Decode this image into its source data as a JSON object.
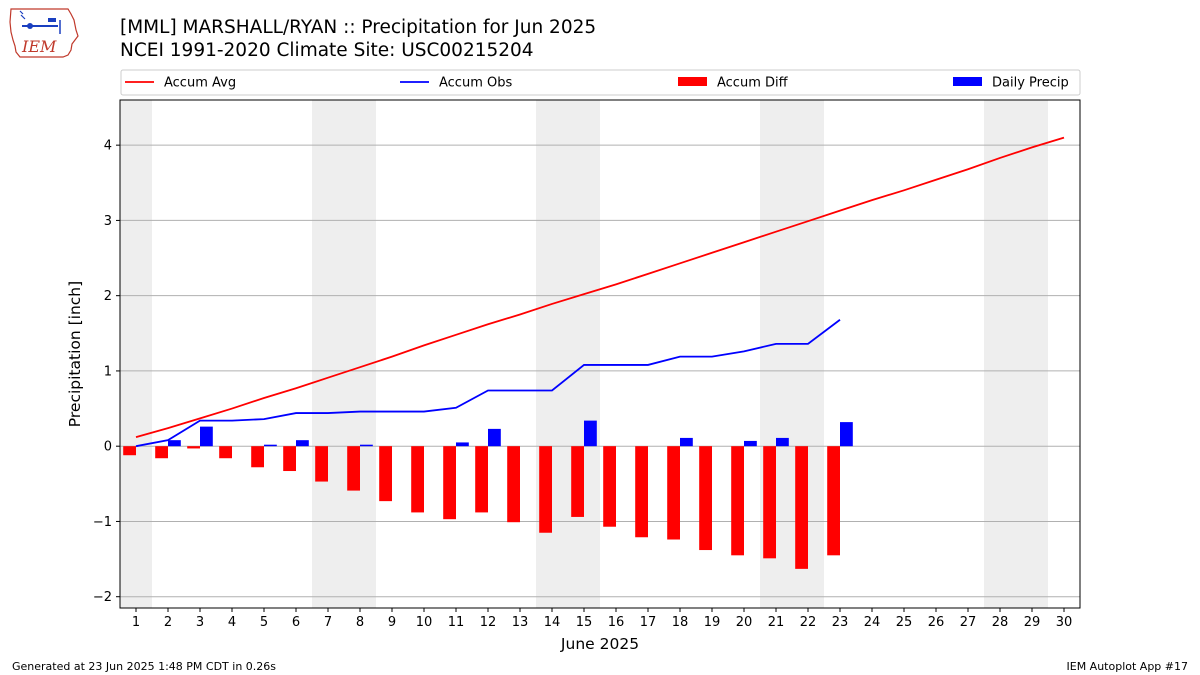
{
  "header": {
    "title_line1": "[MML] MARSHALL/RYAN :: Precipitation for Jun 2025",
    "title_line2": "NCEI 1991-2020 Climate Site: USC00215204",
    "logo_text": "IEM"
  },
  "footer": {
    "generated": "Generated at 23 Jun 2025 1:48 PM CDT in 0.26s",
    "app": "IEM Autoplot App #17"
  },
  "colors": {
    "avg": "#ff0000",
    "obs": "#0000ff",
    "diff": "#ff0000",
    "daily": "#0000ff",
    "weekend_shade": "#eeeeee",
    "grid": "#b0b0b0"
  },
  "chart_data": {
    "type": "bar",
    "xlabel": "June 2025",
    "ylabel": "Precipitation [inch]",
    "ylim": [
      -2.15,
      4.6
    ],
    "xlim": [
      0.5,
      30.5
    ],
    "yticks": [
      -2,
      -1,
      0,
      1,
      2,
      3,
      4
    ],
    "ytick_labels": [
      "−2",
      "−1",
      "0",
      "1",
      "2",
      "3",
      "4"
    ],
    "days": [
      1,
      2,
      3,
      4,
      5,
      6,
      7,
      8,
      9,
      10,
      11,
      12,
      13,
      14,
      15,
      16,
      17,
      18,
      19,
      20,
      21,
      22,
      23,
      24,
      25,
      26,
      27,
      28,
      29,
      30
    ],
    "grid": "horizontal",
    "legend_position": "top",
    "legend": [
      "Accum Avg",
      "Accum Obs",
      "Accum Diff",
      "Daily Precip"
    ],
    "shaded_weekends": [
      [
        0.5,
        1.5
      ],
      [
        6.5,
        8.5
      ],
      [
        13.5,
        15.5
      ],
      [
        20.5,
        22.5
      ],
      [
        27.5,
        29.5
      ]
    ],
    "series": [
      {
        "name": "Accum Avg",
        "kind": "line",
        "values": [
          0.12,
          0.24,
          0.37,
          0.5,
          0.64,
          0.77,
          0.91,
          1.05,
          1.19,
          1.34,
          1.48,
          1.62,
          1.75,
          1.89,
          2.02,
          2.15,
          2.29,
          2.43,
          2.57,
          2.71,
          2.85,
          2.99,
          3.13,
          3.27,
          3.4,
          3.54,
          3.68,
          3.83,
          3.97,
          4.1
        ]
      },
      {
        "name": "Accum Obs",
        "kind": "line",
        "values": [
          0.0,
          0.08,
          0.34,
          0.34,
          0.36,
          0.44,
          0.44,
          0.46,
          0.46,
          0.46,
          0.51,
          0.74,
          0.74,
          0.74,
          1.08,
          1.08,
          1.08,
          1.19,
          1.19,
          1.26,
          1.36,
          1.36,
          1.68
        ]
      },
      {
        "name": "Accum Diff",
        "kind": "bar",
        "values": [
          -0.12,
          -0.16,
          -0.03,
          -0.16,
          -0.28,
          -0.33,
          -0.47,
          -0.59,
          -0.73,
          -0.88,
          -0.97,
          -0.88,
          -1.01,
          -1.15,
          -0.94,
          -1.07,
          -1.21,
          -1.24,
          -1.38,
          -1.45,
          -1.49,
          -1.63,
          -1.45
        ]
      },
      {
        "name": "Daily Precip",
        "kind": "bar",
        "values": [
          0.0,
          0.08,
          0.26,
          0.0,
          0.02,
          0.08,
          0.0,
          0.02,
          0.0,
          0.0,
          0.05,
          0.23,
          0.0,
          0.0,
          0.34,
          0.0,
          0.0,
          0.11,
          0.0,
          0.07,
          0.11,
          0.0,
          0.32
        ]
      }
    ]
  }
}
